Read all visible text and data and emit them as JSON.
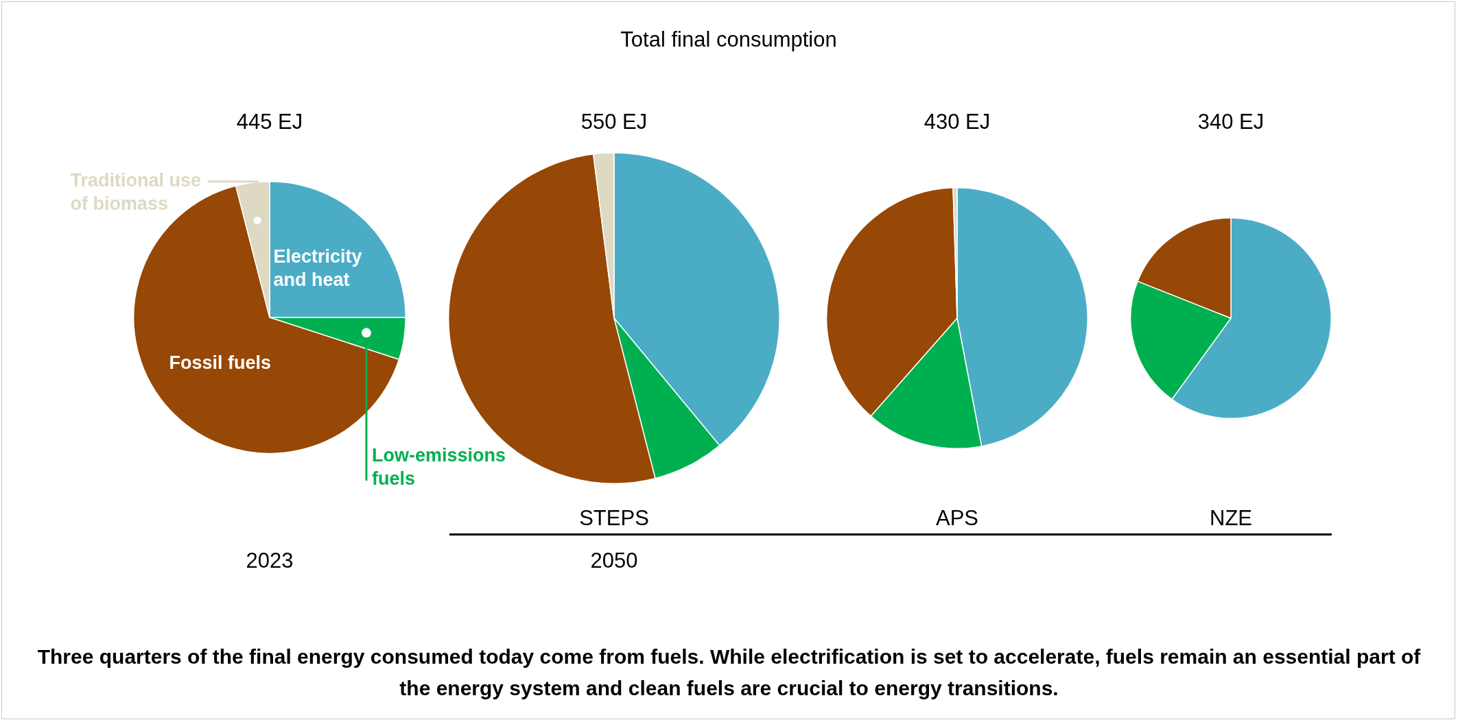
{
  "chart_data": [
    {
      "type": "pie",
      "title": "445 EJ",
      "xlabel": "2023",
      "categories": [
        "Electricity and heat",
        "Low-emissions fuels",
        "Fossil fuels",
        "Traditional use of biomass"
      ],
      "values": [
        25,
        5,
        66,
        4
      ],
      "colors": [
        "#4bacc6",
        "#00b050",
        "#974706",
        "#ddd9c3"
      ],
      "annotations": [
        "Total final consumption",
        "Three quarters of the final energy consumed today come from fuels. While electrification is set to accelerate, fuels remain an essential part of the energy system and clean fuels are crucial to energy transitions."
      ],
      "legend": false
    },
    {
      "type": "pie",
      "title": "550 EJ",
      "xlabel": "STEPS",
      "categories": [
        null,
        null,
        null,
        null
      ],
      "values": [
        39,
        7,
        52,
        2
      ],
      "colors": [
        "#4bacc6",
        "#00b050",
        "#974706",
        "#ddd9c3"
      ],
      "annotations": [
        "2050"
      ],
      "legend": false
    },
    {
      "type": "pie",
      "title": "430 EJ",
      "xlabel": "APS",
      "categories": [
        null,
        null,
        null,
        null
      ],
      "values": [
        47,
        14.5,
        38,
        0.5
      ],
      "colors": [
        "#4bacc6",
        "#00b050",
        "#974706",
        "#ddd9c3"
      ],
      "legend": false
    },
    {
      "type": "pie",
      "title": "340 EJ",
      "xlabel": "NZE",
      "categories": [
        null,
        null,
        null
      ],
      "values": [
        60,
        21,
        19
      ],
      "colors": [
        "#4bacc6",
        "#00b050",
        "#974706"
      ],
      "legend": false
    }
  ]
}
